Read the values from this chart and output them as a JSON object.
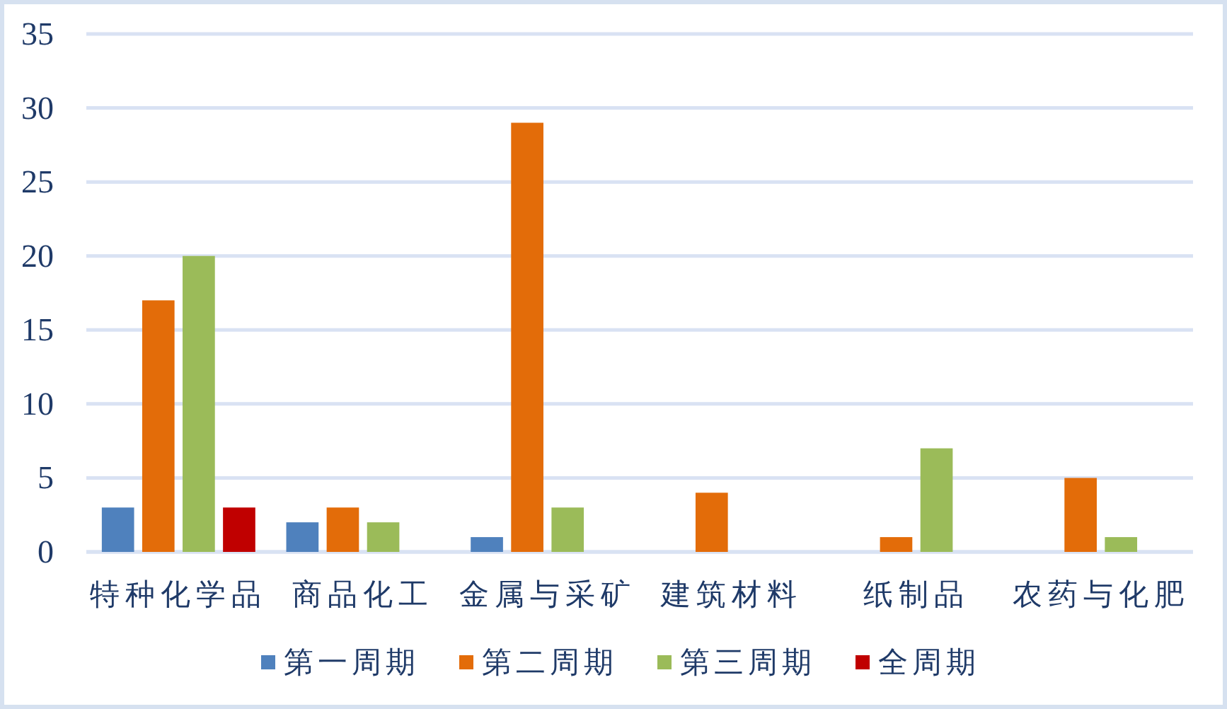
{
  "chart_data": {
    "type": "bar",
    "categories": [
      "特种化学品",
      "商品化工",
      "金属与采矿",
      "建筑材料",
      "纸制品",
      "农药与化肥"
    ],
    "series": [
      {
        "name": "第一周期",
        "color": "#4f81bd",
        "values": [
          3,
          2,
          1,
          null,
          null,
          null
        ]
      },
      {
        "name": "第二周期",
        "color": "#e36c09",
        "values": [
          17,
          3,
          29,
          4,
          1,
          5
        ]
      },
      {
        "name": "第三周期",
        "color": "#9bbb59",
        "values": [
          20,
          2,
          3,
          null,
          7,
          1
        ]
      },
      {
        "name": "全周期",
        "color": "#c00000",
        "values": [
          3,
          null,
          null,
          null,
          null,
          null
        ]
      }
    ],
    "ylim": [
      0,
      35
    ],
    "yticks": [
      0,
      5,
      10,
      15,
      20,
      25,
      30,
      35
    ],
    "grid": "y",
    "legend": "bottom"
  }
}
